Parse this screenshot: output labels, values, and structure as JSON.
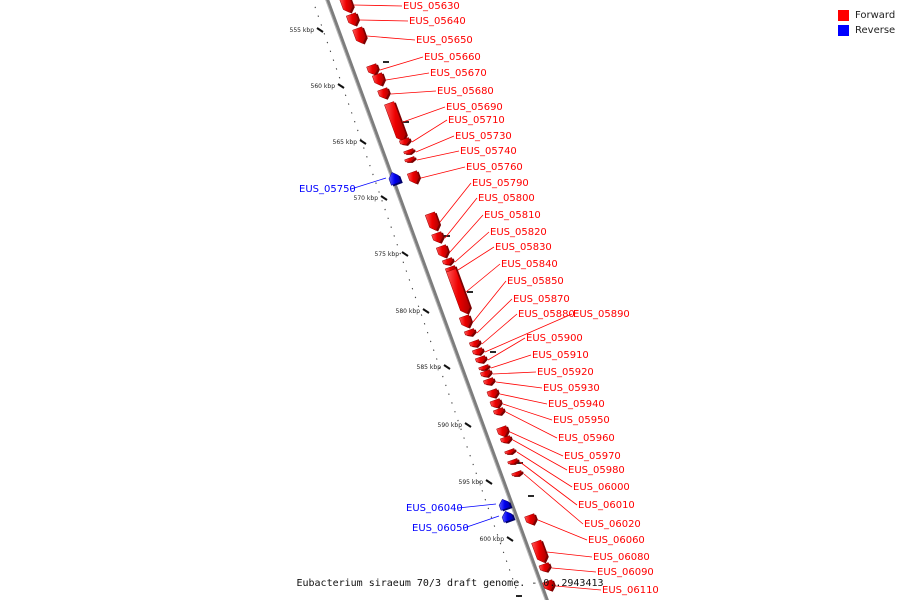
{
  "legend": {
    "forward_label": "Forward",
    "reverse_label": "Reverse",
    "forward_color": "#ff0000",
    "reverse_color": "#0000ff"
  },
  "caption": "Eubacterium siraeum 70/3 draft genome. - 0..2943413",
  "axis": {
    "scale_labels": [
      "555 kbp",
      "560 kbp",
      "565 kbp",
      "570 kbp",
      "575 kbp",
      "580 kbp",
      "585 kbp",
      "590 kbp",
      "595 kbp",
      "600 kbp"
    ]
  },
  "genes": [
    {
      "label": "EUS_05630",
      "strand": "forward"
    },
    {
      "label": "EUS_05640",
      "strand": "forward"
    },
    {
      "label": "EUS_05650",
      "strand": "forward"
    },
    {
      "label": "EUS_05660",
      "strand": "forward"
    },
    {
      "label": "EUS_05670",
      "strand": "forward"
    },
    {
      "label": "EUS_05680",
      "strand": "forward"
    },
    {
      "label": "EUS_05690",
      "strand": "forward"
    },
    {
      "label": "EUS_05710",
      "strand": "forward"
    },
    {
      "label": "EUS_05730",
      "strand": "forward"
    },
    {
      "label": "EUS_05740",
      "strand": "forward"
    },
    {
      "label": "EUS_05760",
      "strand": "forward"
    },
    {
      "label": "EUS_05750",
      "strand": "reverse"
    },
    {
      "label": "EUS_05790",
      "strand": "forward"
    },
    {
      "label": "EUS_05800",
      "strand": "forward"
    },
    {
      "label": "EUS_05810",
      "strand": "forward"
    },
    {
      "label": "EUS_05820",
      "strand": "forward"
    },
    {
      "label": "EUS_05830",
      "strand": "forward"
    },
    {
      "label": "EUS_05840",
      "strand": "forward"
    },
    {
      "label": "EUS_05850",
      "strand": "forward"
    },
    {
      "label": "EUS_05870",
      "strand": "forward"
    },
    {
      "label": "EUS_05880",
      "strand": "forward"
    },
    {
      "label": "EUS_05890",
      "strand": "forward"
    },
    {
      "label": "EUS_05900",
      "strand": "forward"
    },
    {
      "label": "EUS_05910",
      "strand": "forward"
    },
    {
      "label": "EUS_05920",
      "strand": "forward"
    },
    {
      "label": "EUS_05930",
      "strand": "forward"
    },
    {
      "label": "EUS_05940",
      "strand": "forward"
    },
    {
      "label": "EUS_05950",
      "strand": "forward"
    },
    {
      "label": "EUS_05960",
      "strand": "forward"
    },
    {
      "label": "EUS_05970",
      "strand": "forward"
    },
    {
      "label": "EUS_05980",
      "strand": "forward"
    },
    {
      "label": "EUS_06000",
      "strand": "forward"
    },
    {
      "label": "EUS_06010",
      "strand": "forward"
    },
    {
      "label": "EUS_06020",
      "strand": "forward"
    },
    {
      "label": "EUS_06060",
      "strand": "forward"
    },
    {
      "label": "EUS_06080",
      "strand": "forward"
    },
    {
      "label": "EUS_06090",
      "strand": "forward"
    },
    {
      "label": "EUS_06110",
      "strand": "forward"
    },
    {
      "label": "EUS_06040",
      "strand": "reverse"
    },
    {
      "label": "EUS_06050",
      "strand": "reverse"
    }
  ]
}
